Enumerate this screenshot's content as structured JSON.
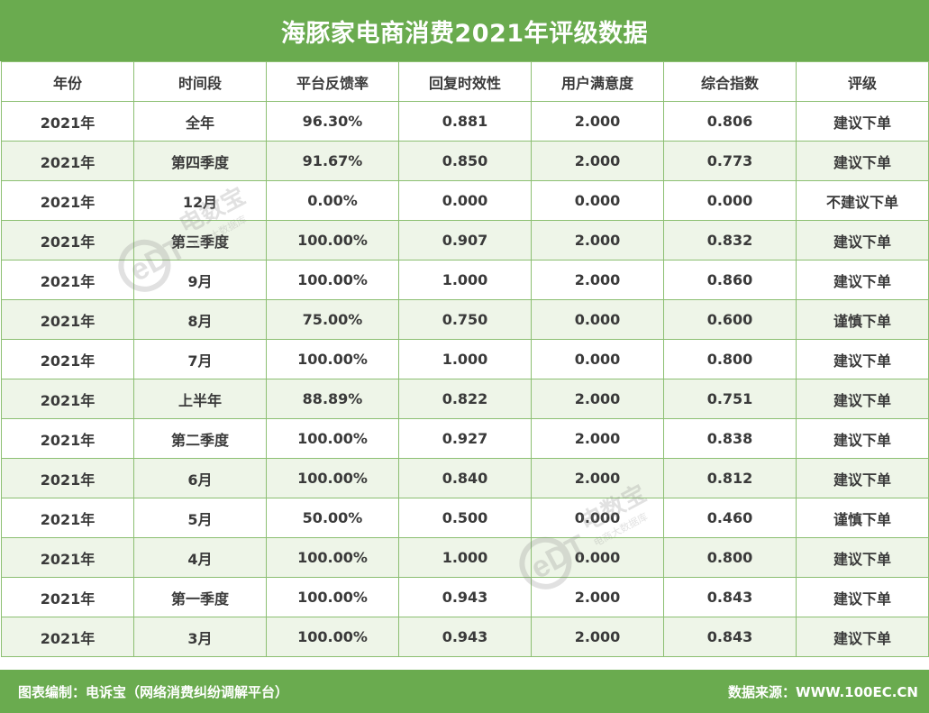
{
  "title": "海豚家电商消费2021年评级数据",
  "table": {
    "headers": [
      "年份",
      "时间段",
      "平台反馈率",
      "回复时效性",
      "用户满意度",
      "综合指数",
      "评级"
    ],
    "rows": [
      [
        "2021年",
        "全年",
        "96.30%",
        "0.881",
        "2.000",
        "0.806",
        "建议下单"
      ],
      [
        "2021年",
        "第四季度",
        "91.67%",
        "0.850",
        "2.000",
        "0.773",
        "建议下单"
      ],
      [
        "2021年",
        "12月",
        "0.00%",
        "0.000",
        "0.000",
        "0.000",
        "不建议下单"
      ],
      [
        "2021年",
        "第三季度",
        "100.00%",
        "0.907",
        "2.000",
        "0.832",
        "建议下单"
      ],
      [
        "2021年",
        "9月",
        "100.00%",
        "1.000",
        "2.000",
        "0.860",
        "建议下单"
      ],
      [
        "2021年",
        "8月",
        "75.00%",
        "0.750",
        "0.000",
        "0.600",
        "谨慎下单"
      ],
      [
        "2021年",
        "7月",
        "100.00%",
        "1.000",
        "0.000",
        "0.800",
        "建议下单"
      ],
      [
        "2021年",
        "上半年",
        "88.89%",
        "0.822",
        "2.000",
        "0.751",
        "建议下单"
      ],
      [
        "2021年",
        "第二季度",
        "100.00%",
        "0.927",
        "2.000",
        "0.838",
        "建议下单"
      ],
      [
        "2021年",
        "6月",
        "100.00%",
        "0.840",
        "2.000",
        "0.812",
        "建议下单"
      ],
      [
        "2021年",
        "5月",
        "50.00%",
        "0.500",
        "0.000",
        "0.460",
        "谨慎下单"
      ],
      [
        "2021年",
        "4月",
        "100.00%",
        "1.000",
        "0.000",
        "0.800",
        "建议下单"
      ],
      [
        "2021年",
        "第一季度",
        "100.00%",
        "0.943",
        "2.000",
        "0.843",
        "建议下单"
      ],
      [
        "2021年",
        "3月",
        "100.00%",
        "0.943",
        "2.000",
        "0.843",
        "建议下单"
      ]
    ]
  },
  "footer": {
    "left": "图表编制：电诉宝（网络消费纠纷调解平台）",
    "right": "数据来源：WWW.100EC.CN"
  },
  "watermark": {
    "logo_text": "eDT",
    "name": "电数宝",
    "subtitle": "电商大数据库"
  },
  "colors": {
    "brand_green": "#6aab4f",
    "row_alt": "#eef5e8",
    "border": "#8cbf72"
  }
}
